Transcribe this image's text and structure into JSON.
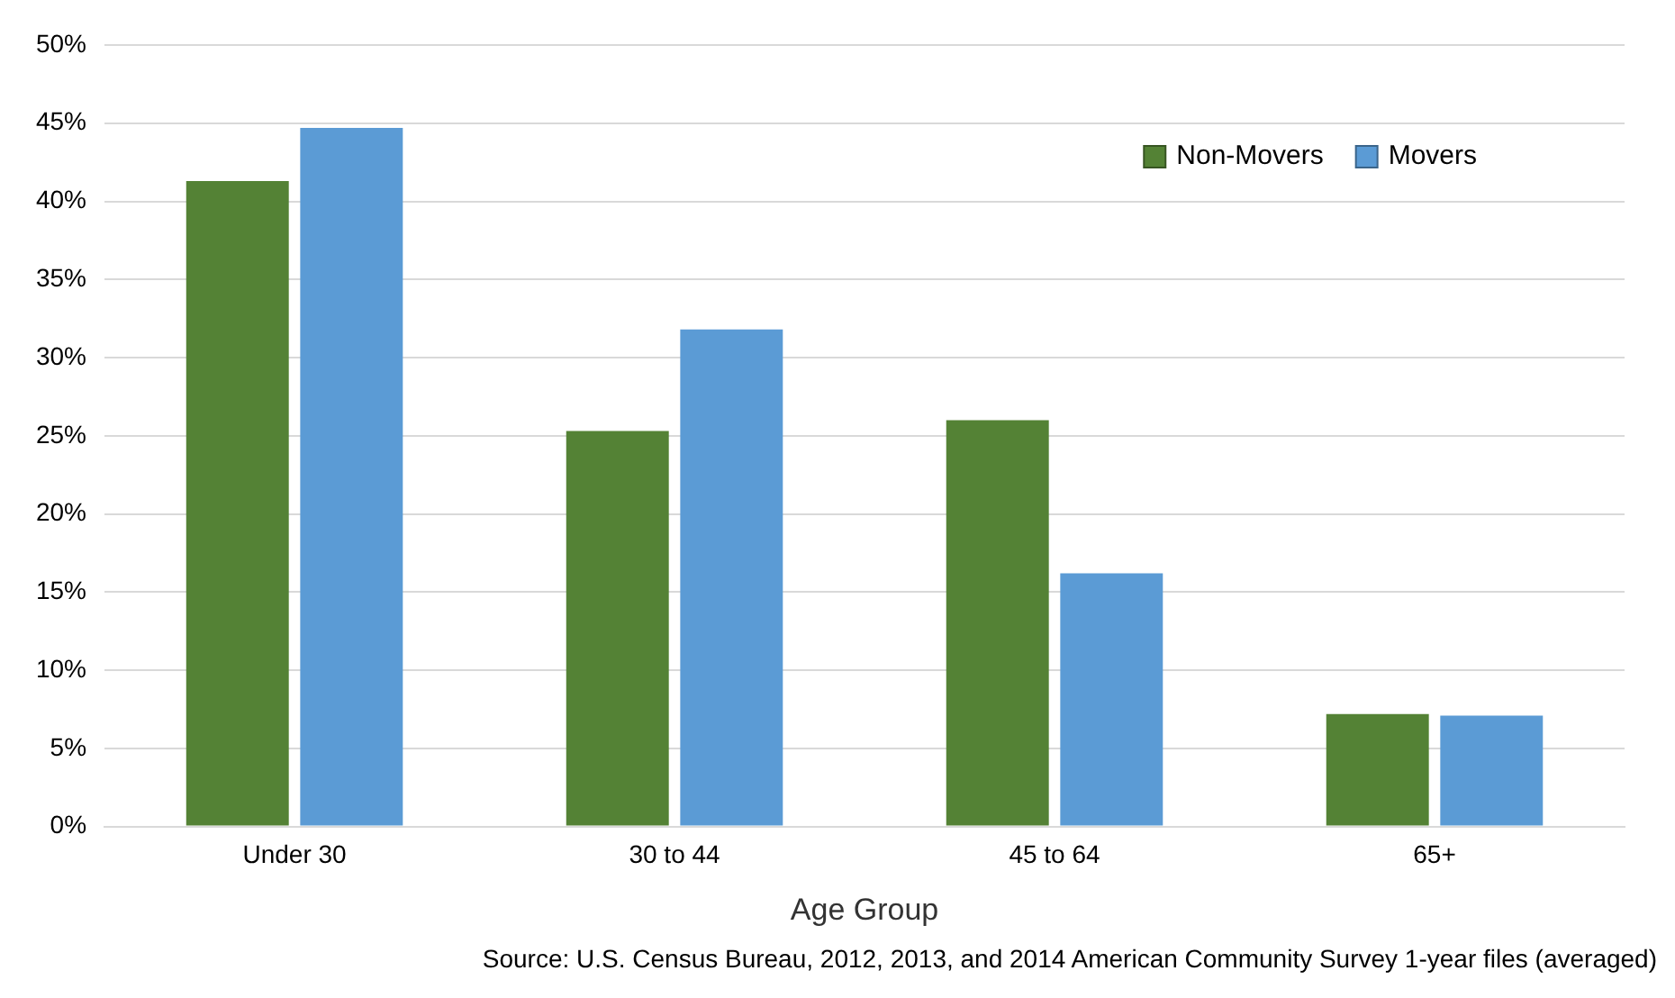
{
  "chart_data": {
    "type": "bar",
    "xlabel": "Age Group",
    "categories": [
      "Under 30",
      "30 to 44",
      "45 to 64",
      "65+"
    ],
    "series": [
      {
        "name": "Non-Movers",
        "color": "#548235",
        "values": [
          41.3,
          25.3,
          26.0,
          7.2
        ]
      },
      {
        "name": "Movers",
        "color": "#5b9bd5",
        "values": [
          44.7,
          31.8,
          16.2,
          7.1
        ]
      }
    ],
    "ylim": [
      0,
      50
    ],
    "yticks": [
      {
        "value": 0,
        "label": "0%"
      },
      {
        "value": 5,
        "label": "5%"
      },
      {
        "value": 10,
        "label": "10%"
      },
      {
        "value": 15,
        "label": "15%"
      },
      {
        "value": 20,
        "label": "20%"
      },
      {
        "value": 25,
        "label": "25%"
      },
      {
        "value": 30,
        "label": "30%"
      },
      {
        "value": 35,
        "label": "35%"
      },
      {
        "value": 40,
        "label": "40%"
      },
      {
        "value": 45,
        "label": "45%"
      },
      {
        "value": 50,
        "label": "50%"
      }
    ],
    "grid": "y",
    "legend": "top right",
    "annotations": [
      "Source: U.S. Census Bureau, 2012, 2013, and 2014 American Community Survey 1-year files (averaged)"
    ]
  }
}
